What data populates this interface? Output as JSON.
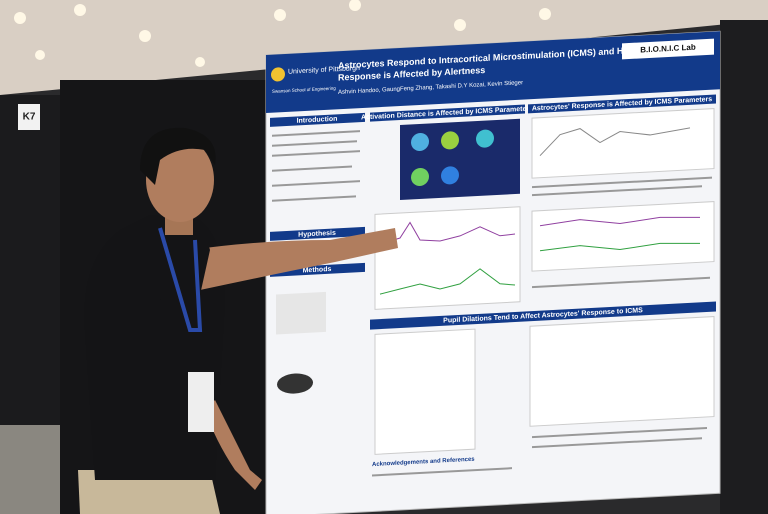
{
  "sign": "K7",
  "poster": {
    "institution": "University of Pittsburgh",
    "school": "Swanson School of Engineering",
    "title_lines": [
      "Astrocytes Respond to Intracortical Microstimulation (ICMS) and How This",
      "Response is Affected by Alertness"
    ],
    "authors": "Ashvin Handoo, GaungFeng Zhang, Takashi D.Y Kozai, Kevin Stieger",
    "lab": "B.I.O.N.I.C Lab",
    "sections": [
      "Introduction",
      "Hypothesis",
      "Methods",
      "Activation Distance is Affected by ICMS Parameters",
      "Astrocytes' Response is Affected by ICMS Parameters",
      "Pupil Dilations Tend to Affect Astrocytes' Response to ICMS",
      "Acknowledgements and References"
    ]
  }
}
